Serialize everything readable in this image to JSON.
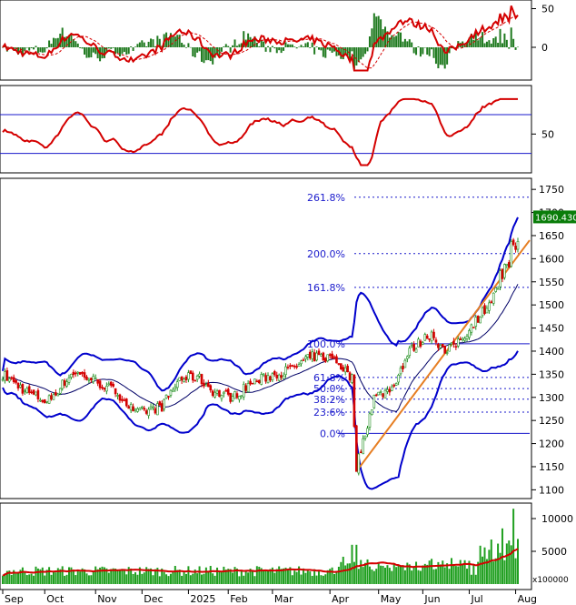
{
  "chart_data": [
    {
      "type": "line",
      "panel": "macd",
      "y_ticks": [
        "50",
        "0"
      ],
      "colors": {
        "line": "#d40000",
        "signal": "#d40000",
        "hist_pos": "#1f7a1f",
        "hist_neg": "#1f7a1f"
      }
    },
    {
      "type": "line",
      "panel": "rsi",
      "y_ticks": [
        "50"
      ],
      "levels": [
        70,
        30
      ],
      "colors": {
        "line": "#d40000",
        "levels": "#1a1acc"
      }
    },
    {
      "type": "candlestick",
      "panel": "price",
      "y_ticks": [
        "1750",
        "1700",
        "1650",
        "1600",
        "1550",
        "1500",
        "1450",
        "1400",
        "1350",
        "1300",
        "1250",
        "1200",
        "1150",
        "1100"
      ],
      "ylim": [
        1085,
        1770
      ],
      "last_price": "1690.430",
      "fibonacci": {
        "levels": [
          {
            "label": "261.8%",
            "value": 1733
          },
          {
            "label": "200.0%",
            "value": 1611
          },
          {
            "label": "161.8%",
            "value": 1538
          },
          {
            "label": "100.0%",
            "value": 1416
          },
          {
            "label": "61.8%",
            "value": 1343
          },
          {
            "label": "50.0%",
            "value": 1319
          },
          {
            "label": "38.2%",
            "value": 1296
          },
          {
            "label": "23.6%",
            "value": 1268
          },
          {
            "label": "0.0%",
            "value": 1222
          }
        ]
      },
      "months": [
        "Sep",
        "Oct",
        "Nov",
        "Dec",
        "2025",
        "Feb",
        "Mar",
        "Apr",
        "May",
        "Jun",
        "Jul",
        "Aug"
      ],
      "colors": {
        "up": "#1f8f1f",
        "down": "#d40000",
        "bands": "#0000cc",
        "ma": "#000066",
        "trend": "#e67e22",
        "fibo": "#1a1acc"
      }
    },
    {
      "type": "bar",
      "panel": "volume",
      "y_ticks": [
        "10000",
        "5000"
      ],
      "unit": "x100000",
      "colors": {
        "bars": "#1f9f1f",
        "ma": "#d40000"
      }
    }
  ]
}
